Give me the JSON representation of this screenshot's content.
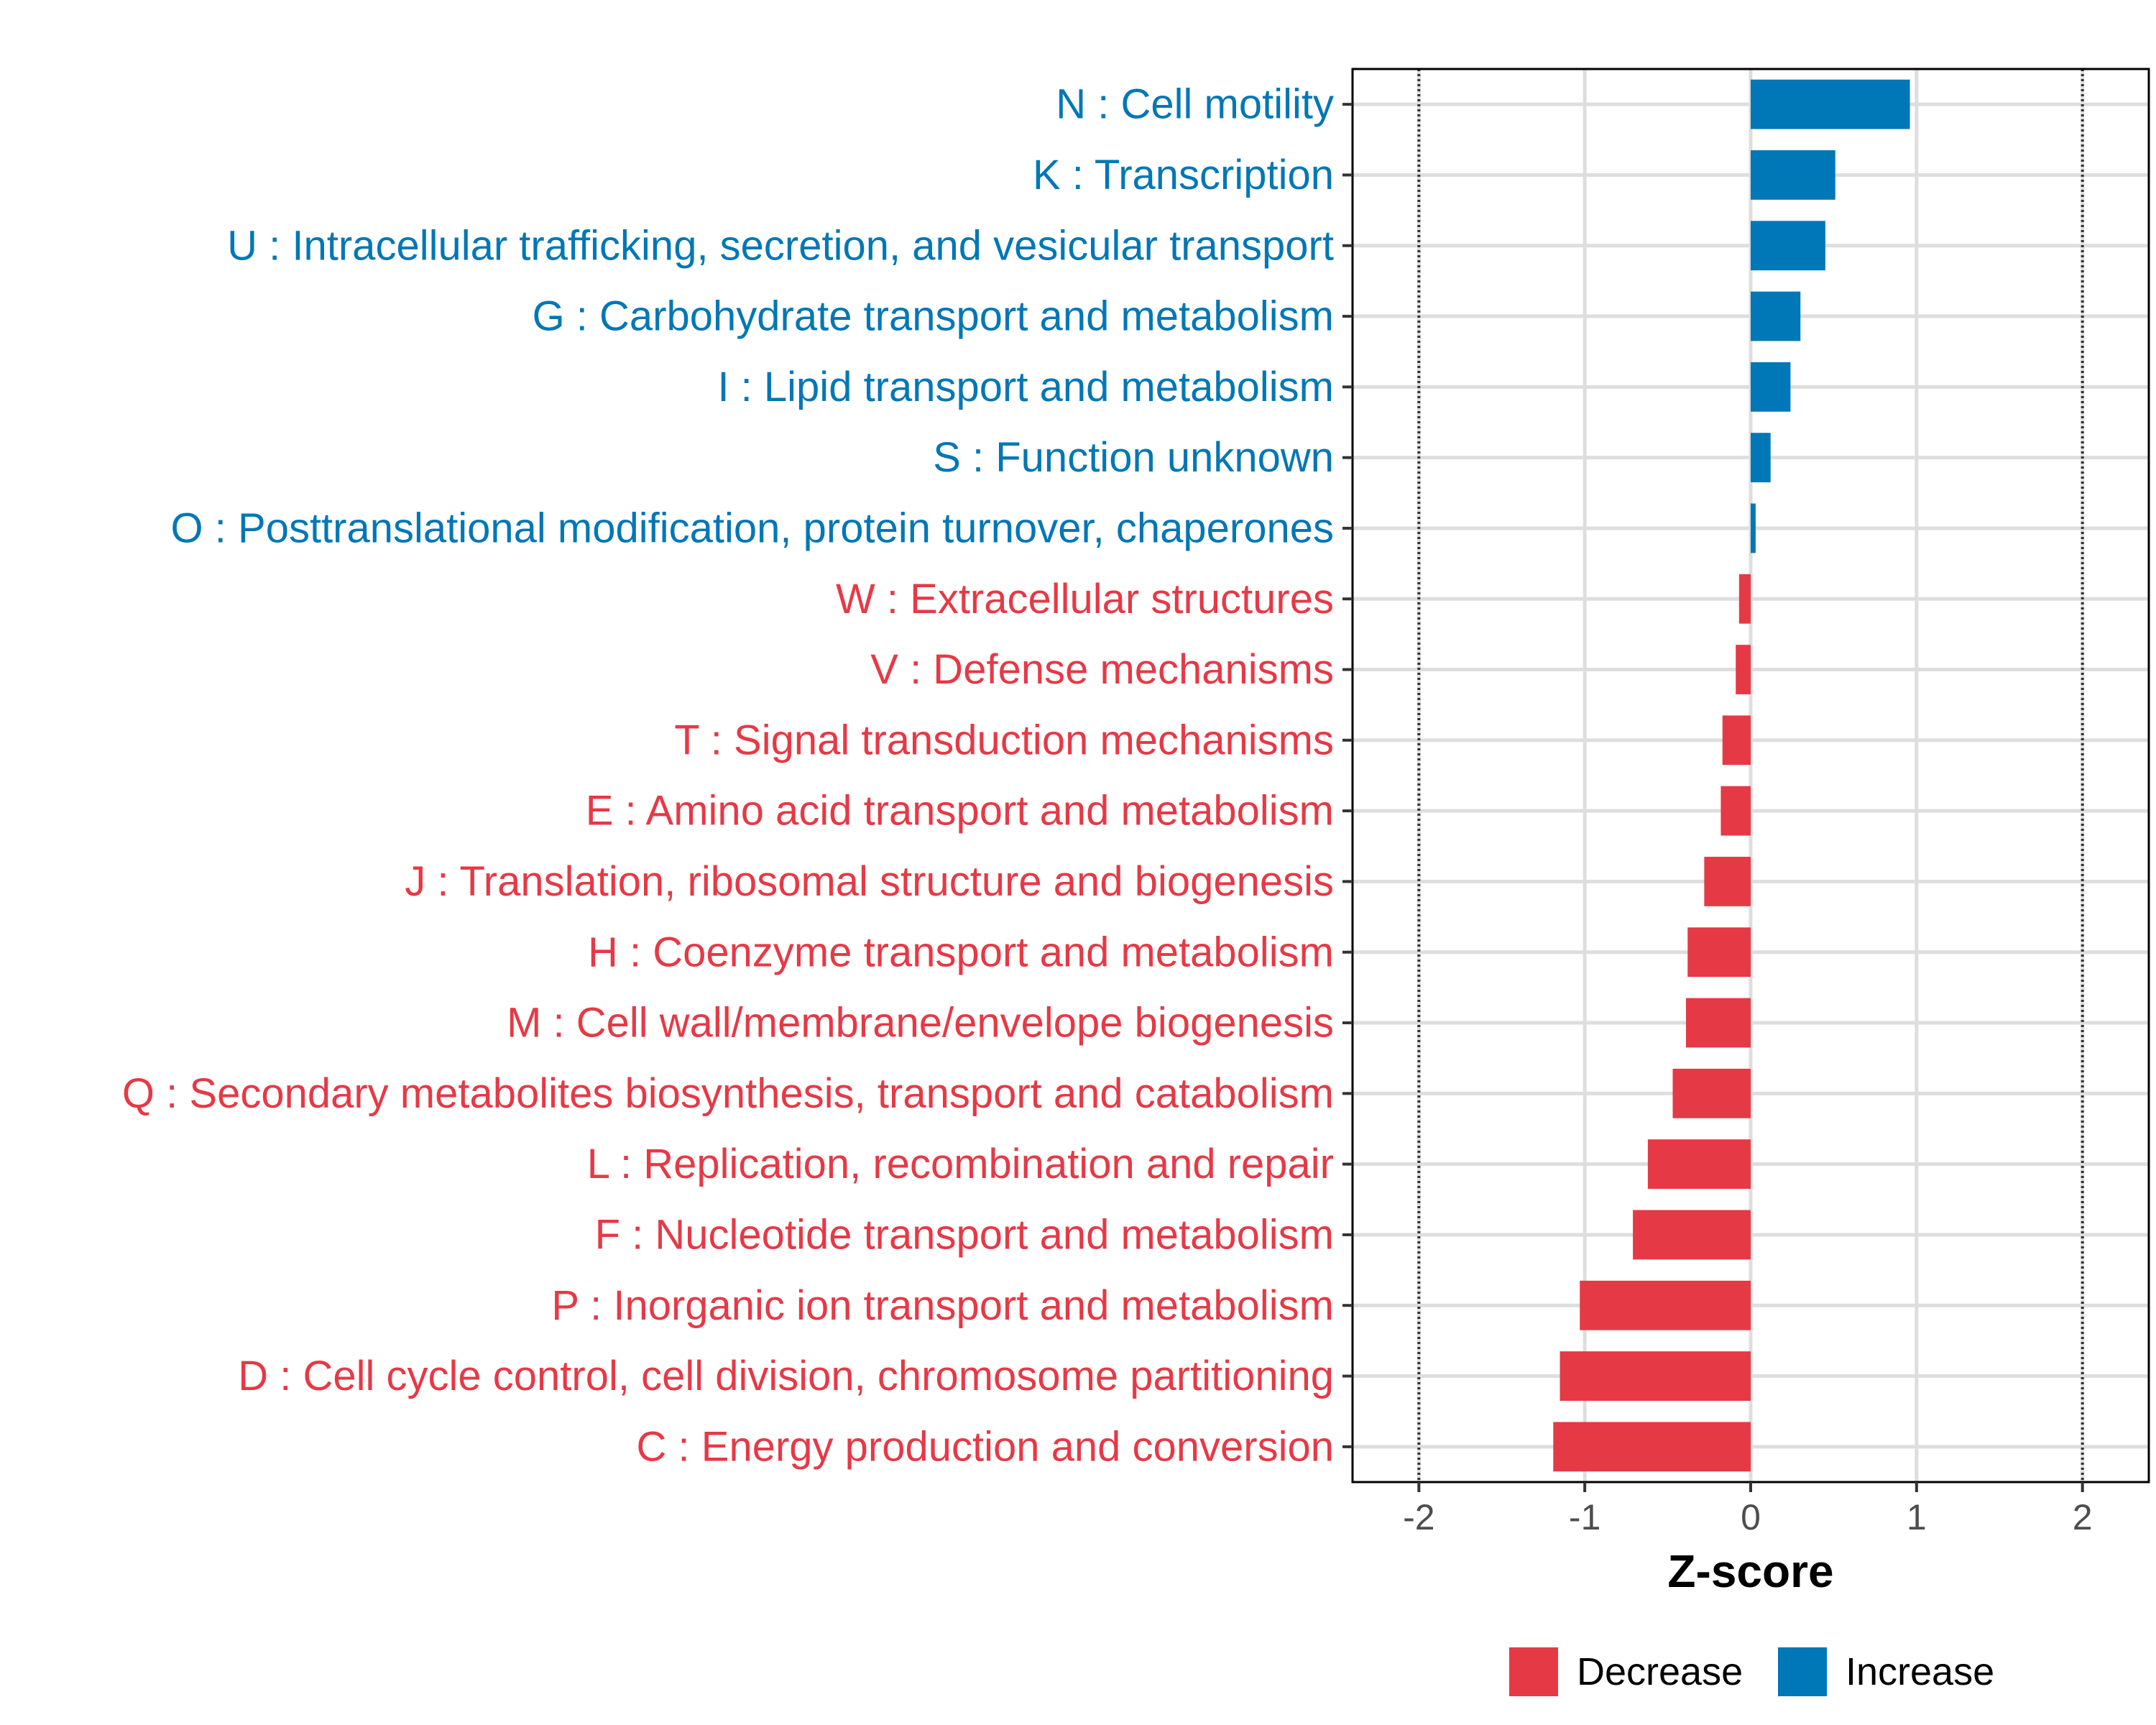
{
  "chart_data": {
    "type": "bar",
    "orientation": "horizontal",
    "title": "",
    "xlabel": "Z-score",
    "ylabel": "",
    "xlim": [
      -2.4,
      2.4
    ],
    "xticks": [
      -2,
      -1,
      0,
      1,
      2
    ],
    "xtick_labels": [
      "-2",
      "-1",
      "0",
      "1",
      "2"
    ],
    "reference_lines": [
      -2,
      2
    ],
    "grid": true,
    "legend_position": "bottom",
    "colors": {
      "Decrease": "#E63946",
      "Increase": "#0077B6"
    },
    "categories": [
      "N : Cell motility",
      "K : Transcription",
      "U : Intracellular trafficking, secretion, and vesicular transport",
      "G : Carbohydrate transport and metabolism",
      "I : Lipid transport and metabolism",
      "S : Function unknown",
      "O : Posttranslational modification, protein turnover, chaperones",
      "W : Extracellular structures",
      "V : Defense mechanisms",
      "T : Signal transduction mechanisms",
      "E : Amino acid transport and metabolism",
      "J : Translation, ribosomal structure and biogenesis",
      "H : Coenzyme transport and metabolism",
      "M : Cell wall/membrane/envelope biogenesis",
      "Q : Secondary metabolites biosynthesis, transport and catabolism",
      "L : Replication, recombination and repair",
      "F : Nucleotide transport and metabolism",
      "P : Inorganic ion transport and metabolism",
      "D : Cell cycle control, cell division, chromosome partitioning",
      "C : Energy production and conversion"
    ],
    "values": [
      0.96,
      0.51,
      0.45,
      0.3,
      0.24,
      0.12,
      0.03,
      -0.07,
      -0.09,
      -0.17,
      -0.18,
      -0.28,
      -0.38,
      -0.39,
      -0.47,
      -0.62,
      -0.71,
      -1.03,
      -1.15,
      -1.19
    ],
    "groups": [
      "Increase",
      "Increase",
      "Increase",
      "Increase",
      "Increase",
      "Increase",
      "Increase",
      "Decrease",
      "Decrease",
      "Decrease",
      "Decrease",
      "Decrease",
      "Decrease",
      "Decrease",
      "Decrease",
      "Decrease",
      "Decrease",
      "Decrease",
      "Decrease",
      "Decrease"
    ],
    "legend": [
      {
        "name": "Decrease",
        "color": "#E63946"
      },
      {
        "name": "Increase",
        "color": "#0077B6"
      }
    ]
  }
}
